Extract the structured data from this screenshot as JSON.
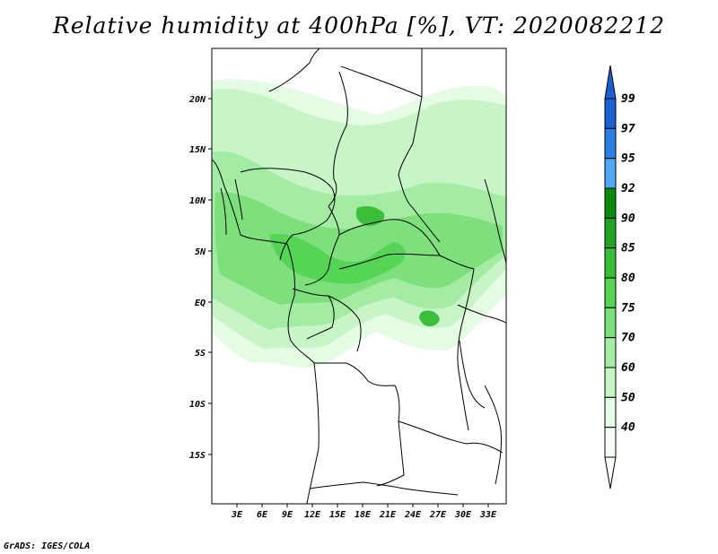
{
  "title": "Relative humidity at 400hPa [%], VT: 2020082212",
  "credit": "GrADS: IGES/COLA",
  "map": {
    "lon_ticks": [
      "3E",
      "6E",
      "9E",
      "12E",
      "15E",
      "18E",
      "21E",
      "24E",
      "27E",
      "30E",
      "33E"
    ],
    "lat_ticks": [
      "20N",
      "15N",
      "10N",
      "5N",
      "EQ",
      "5S",
      "10S",
      "15S"
    ]
  },
  "colorbar": {
    "labels": [
      "99",
      "97",
      "95",
      "92",
      "90",
      "85",
      "80",
      "75",
      "70",
      "60",
      "50",
      "40"
    ],
    "colors": [
      "#1c5fcf",
      "#2b7fe6",
      "#52a8f0",
      "#0f8a0f",
      "#22a322",
      "#3bbf3b",
      "#55d455",
      "#7de07d",
      "#a4eca4",
      "#c8f5c8",
      "#e4fbe4",
      "#f5fff5"
    ]
  },
  "legend_levels": [
    40,
    50,
    60,
    70,
    75,
    80,
    85,
    90,
    92,
    95,
    97,
    99
  ]
}
